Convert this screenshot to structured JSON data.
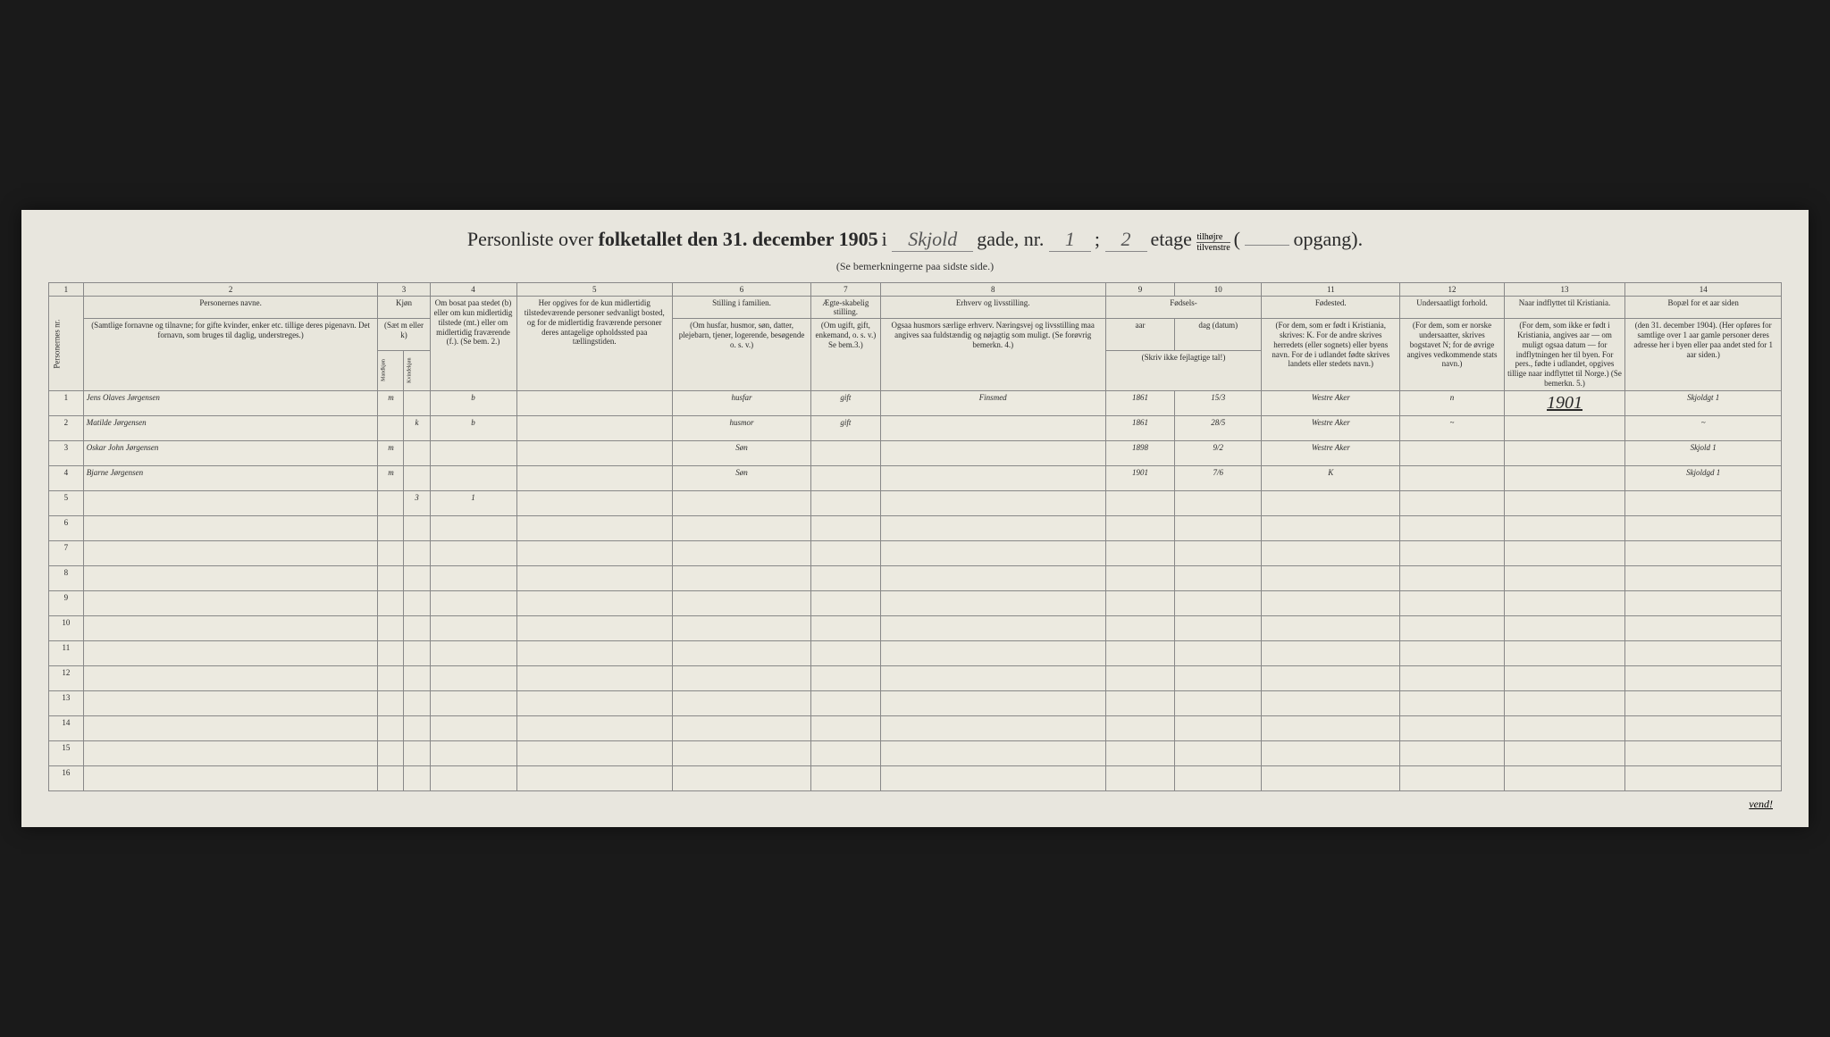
{
  "title": {
    "prefix": "Personliste over ",
    "bold": "folketallet den 31. december 1905",
    "i": " i ",
    "street_fill": "Skjold",
    "gade": " gade, nr. ",
    "nr_fill": "1",
    "semi": " ; ",
    "etage_fill": "2",
    "etage": " etage ",
    "tilhojre": "tilhøjre",
    "tilvenstre": "tilvenstre",
    "paren_open": " ( ",
    "opgang_fill": "",
    "opgang": " opgang)."
  },
  "subtitle": "(Se bemerkningerne paa sidste side.)",
  "col_numbers": [
    "1",
    "2",
    "3",
    "4",
    "5",
    "6",
    "7",
    "8",
    "9",
    "10",
    "11",
    "12",
    "13",
    "14"
  ],
  "headers": {
    "c1": "Personernes nr.",
    "c2_main": "Personernes navne.",
    "c2_sub": "(Samtlige fornavne og tilnavne; for gifte kvinder, enker etc. tillige deres pigenavn. Det fornavn, som bruges til daglig, understreges.)",
    "c3_main": "Kjøn",
    "c3_sub": "(Sæt m eller k)",
    "c3_mk_m": "Mandkjøn",
    "c3_mk_k": "Kvindekjøn",
    "c4_sub": "Om bosat paa stedet (b) eller om kun midlertidig tilstede (mt.) eller om midlertidig fraværende (f.). (Se bem. 2.)",
    "c5_sub": "Her opgives for de kun midlertidig tilstedeværende personer sedvanligt bosted, og for de midlertidig fraværende personer deres antagelige opholdssted paa tællingstiden.",
    "c6_main": "Stilling i familien.",
    "c6_sub": "(Om husfar, husmor, søn, datter, plejebarn, tjener, logerende, besøgende o. s. v.)",
    "c7_main": "Ægte-skabelig stilling.",
    "c7_sub": "(Om ugift, gift, enkemand, o. s. v.) Se bem.3.)",
    "c8_main": "Erhverv og livsstilling.",
    "c8_sub": "Ogsaa husmors særlige erhverv. Næringsvej og livsstilling maa angives saa fuldstændig og nøjagtig som muligt. (Se forøvrig bemerkn. 4.)",
    "c9_10_main": "Fødsels-",
    "c9_sub": "aar",
    "c10_sub": "dag (datum)",
    "c9_10_note": "(Skriv ikke fejlagtige tal!)",
    "c11_main": "Fødested.",
    "c11_sub": "(For dem, som er født i Kristiania, skrives: K. For de andre skrives herredets (eller sognets) eller byens navn. For de i udlandet fødte skrives landets eller stedets navn.)",
    "c12_main": "Undersaatligt forhold.",
    "c12_sub": "(For dem, som er norske undersaatter, skrives bogstavet N; for de øvrige angives vedkommende stats navn.)",
    "c13_main": "Naar indflyttet til Kristiania.",
    "c13_sub": "(For dem, som ikke er født i Kristiania, angives aar — om muligt ogsaa datum — for indflytningen her til byen. For pers., fødte i udlandet, opgives tillige naar indflyttet til Norge.) (Se bemerkn. 5.)",
    "c14_main": "Bopæl for et aar siden",
    "c14_sub": "(den 31. december 1904). (Her opføres for samtlige over 1 aar gamle personer deres adresse her i byen eller paa andet sted for 1 aar siden.)"
  },
  "rows": [
    {
      "n": "1",
      "name": "Jens Olaves Jørgensen",
      "kj_m": "m",
      "kj_k": "",
      "bosat": "b",
      "sted": "",
      "stilling": "husfar",
      "aegte": "gift",
      "erhverv": "Finsmed",
      "aar": "1861",
      "dag": "15/3",
      "fodested": "Westre Aker",
      "under": "n",
      "indflyt": "1901",
      "bopael": "Skjoldgt 1"
    },
    {
      "n": "2",
      "name": "Matilde Jørgensen",
      "kj_m": "",
      "kj_k": "k",
      "bosat": "b",
      "sted": "",
      "stilling": "husmor",
      "aegte": "gift",
      "erhverv": "",
      "aar": "1861",
      "dag": "28/5",
      "fodested": "Westre Aker",
      "under": "~",
      "indflyt": "",
      "bopael": "~"
    },
    {
      "n": "3",
      "name": "Oskar John Jørgensen",
      "kj_m": "m",
      "kj_k": "",
      "bosat": "",
      "sted": "",
      "stilling": "Søn",
      "aegte": "",
      "erhverv": "",
      "aar": "1898",
      "dag": "9/2",
      "fodested": "Westre Aker",
      "under": "",
      "indflyt": "",
      "bopael": "Skjold 1"
    },
    {
      "n": "4",
      "name": "Bjarne Jørgensen",
      "kj_m": "m",
      "kj_k": "",
      "bosat": "",
      "sted": "",
      "stilling": "Søn",
      "aegte": "",
      "erhverv": "",
      "aar": "1901",
      "dag": "7/6",
      "fodested": "K",
      "under": "",
      "indflyt": "",
      "bopael": "Skjoldgd 1"
    },
    {
      "n": "5",
      "name": "",
      "kj_m": "",
      "kj_k": "3",
      "bosat": "1",
      "sted": "",
      "stilling": "",
      "aegte": "",
      "erhverv": "",
      "aar": "",
      "dag": "",
      "fodested": "",
      "under": "",
      "indflyt": "",
      "bopael": ""
    },
    {
      "n": "6"
    },
    {
      "n": "7"
    },
    {
      "n": "8"
    },
    {
      "n": "9"
    },
    {
      "n": "10"
    },
    {
      "n": "11"
    },
    {
      "n": "12"
    },
    {
      "n": "13"
    },
    {
      "n": "14"
    },
    {
      "n": "15"
    },
    {
      "n": "16"
    }
  ],
  "vend": "vend!",
  "colors": {
    "page_bg": "#1a1a1a",
    "paper": "#e8e6de",
    "line": "#888888",
    "ink": "#2a2a2a",
    "hand": "#3a3a3a"
  }
}
